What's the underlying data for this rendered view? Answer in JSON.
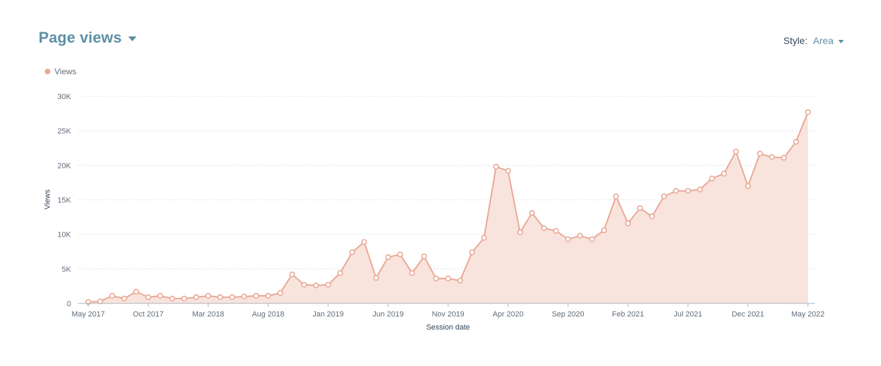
{
  "header": {
    "title": "Page views"
  },
  "style_control": {
    "label": "Style:",
    "value": "Area"
  },
  "chart_data": {
    "type": "area",
    "xlabel": "Session date",
    "ylabel": "Views",
    "ylim": [
      0,
      30000
    ],
    "y_ticks": [
      0,
      5000,
      10000,
      15000,
      20000,
      25000,
      30000
    ],
    "y_tick_labels": [
      "0",
      "5K",
      "10K",
      "15K",
      "20K",
      "25K",
      "30K"
    ],
    "x_tick_labels": [
      "May 2017",
      "Oct 2017",
      "Mar 2018",
      "Aug 2018",
      "Jan 2019",
      "Jun 2019",
      "Nov 2019",
      "Apr 2020",
      "Sep 2020",
      "Feb 2021",
      "Jul 2021",
      "Dec 2021",
      "May 2022"
    ],
    "grid": true,
    "legend": "top-left",
    "series": [
      {
        "name": "Views",
        "color": "#e8a894",
        "fill": "#f9e4dd",
        "x": [
          "May 2017",
          "Jun 2017",
          "Jul 2017",
          "Aug 2017",
          "Sep 2017",
          "Oct 2017",
          "Nov 2017",
          "Dec 2017",
          "Jan 2018",
          "Feb 2018",
          "Mar 2018",
          "Apr 2018",
          "May 2018",
          "Jun 2018",
          "Jul 2018",
          "Aug 2018",
          "Sep 2018",
          "Oct 2018",
          "Nov 2018",
          "Dec 2018",
          "Jan 2019",
          "Feb 2019",
          "Mar 2019",
          "Apr 2019",
          "May 2019",
          "Jun 2019",
          "Jul 2019",
          "Aug 2019",
          "Sep 2019",
          "Oct 2019",
          "Nov 2019",
          "Dec 2019",
          "Jan 2020",
          "Feb 2020",
          "Mar 2020",
          "Apr 2020",
          "May 2020",
          "Jun 2020",
          "Jul 2020",
          "Aug 2020",
          "Sep 2020",
          "Oct 2020",
          "Nov 2020",
          "Dec 2020",
          "Jan 2021",
          "Feb 2021",
          "Mar 2021",
          "Apr 2021",
          "May 2021",
          "Jun 2021",
          "Jul 2021",
          "Aug 2021",
          "Sep 2021",
          "Oct 2021",
          "Nov 2021",
          "Dec 2021",
          "Jan 2022",
          "Feb 2022",
          "Mar 2022",
          "Apr 2022",
          "May 2022"
        ],
        "values": [
          200,
          300,
          1100,
          700,
          1700,
          900,
          1100,
          700,
          700,
          900,
          1100,
          900,
          900,
          1000,
          1100,
          1100,
          1500,
          4200,
          2700,
          2600,
          2700,
          4400,
          7400,
          8900,
          3700,
          6700,
          7100,
          4400,
          6800,
          3600,
          3600,
          3300,
          7400,
          9500,
          19800,
          19200,
          10300,
          13100,
          10900,
          10500,
          9300,
          9800,
          9300,
          10600,
          15500,
          11600,
          13800,
          12600,
          15500,
          16300,
          16300,
          16500,
          18100,
          18800,
          22000,
          17000,
          21700,
          21200,
          21100,
          23400,
          27700
        ]
      }
    ]
  }
}
